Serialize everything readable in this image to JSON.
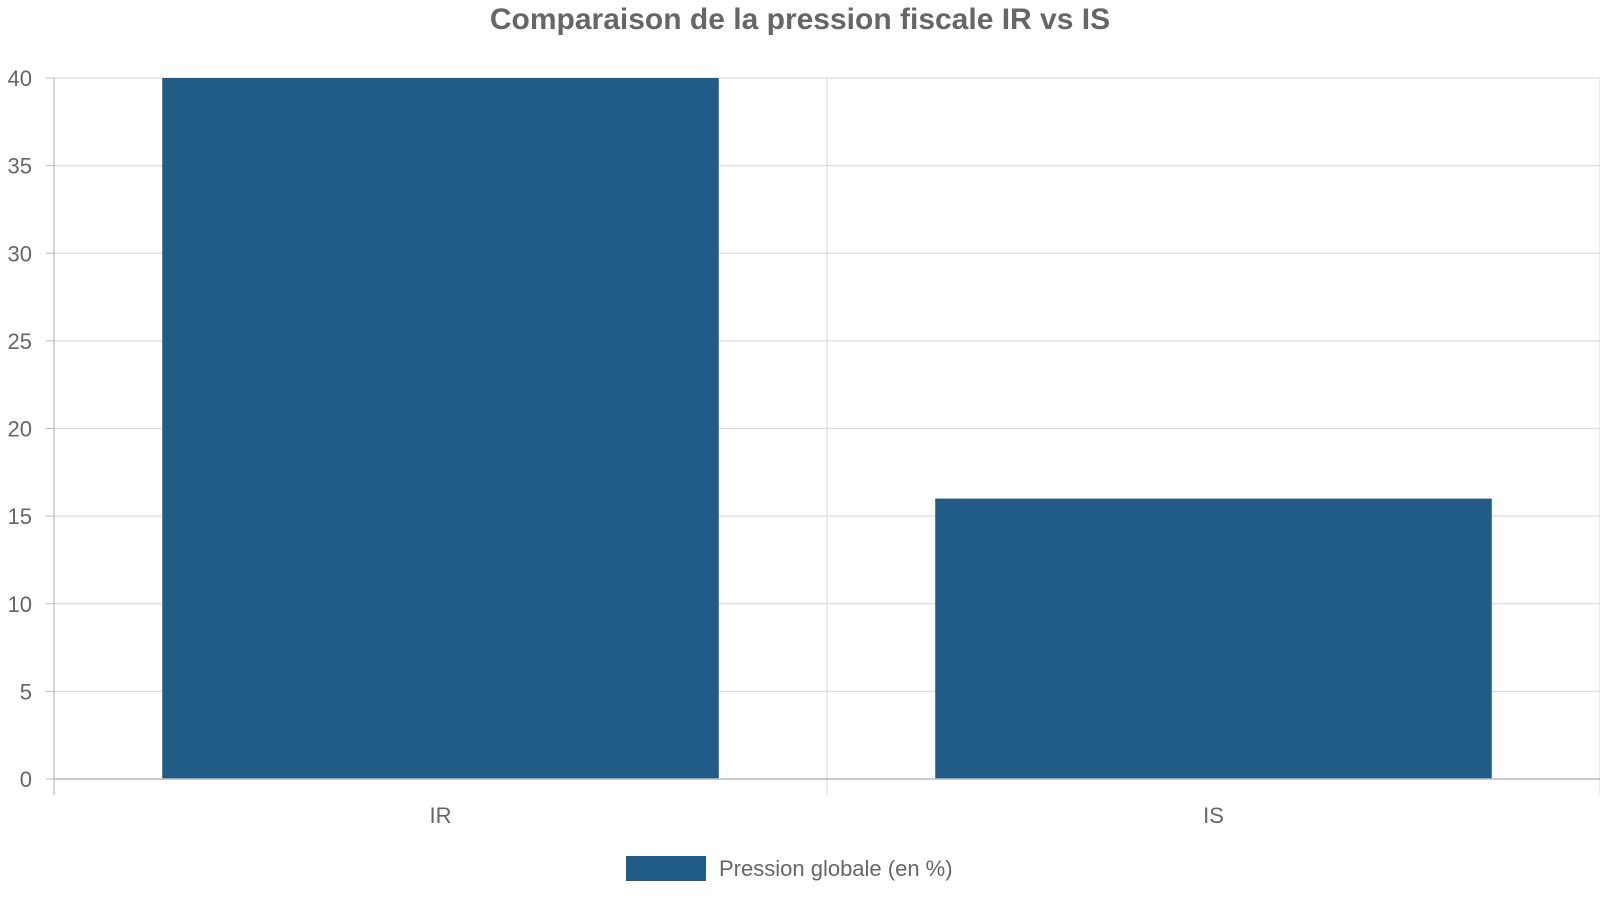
{
  "chart_data": {
    "type": "bar",
    "title": "Comparaison de la pression fiscale IR vs IS",
    "categories": [
      "IR",
      "IS"
    ],
    "series": [
      {
        "name": "Pression globale (en %)",
        "values": [
          40,
          16
        ],
        "color": "#205c87"
      }
    ],
    "ylim": [
      0,
      40
    ],
    "yticks": [
      "0",
      "5",
      "10",
      "15",
      "20",
      "25",
      "30",
      "35",
      "40"
    ],
    "grid": true,
    "legend_position": "bottom-center"
  },
  "colors": {
    "text": "#666666",
    "grid": "#dddddd",
    "axis": "#bbbbbb",
    "bar": "#205c87"
  }
}
